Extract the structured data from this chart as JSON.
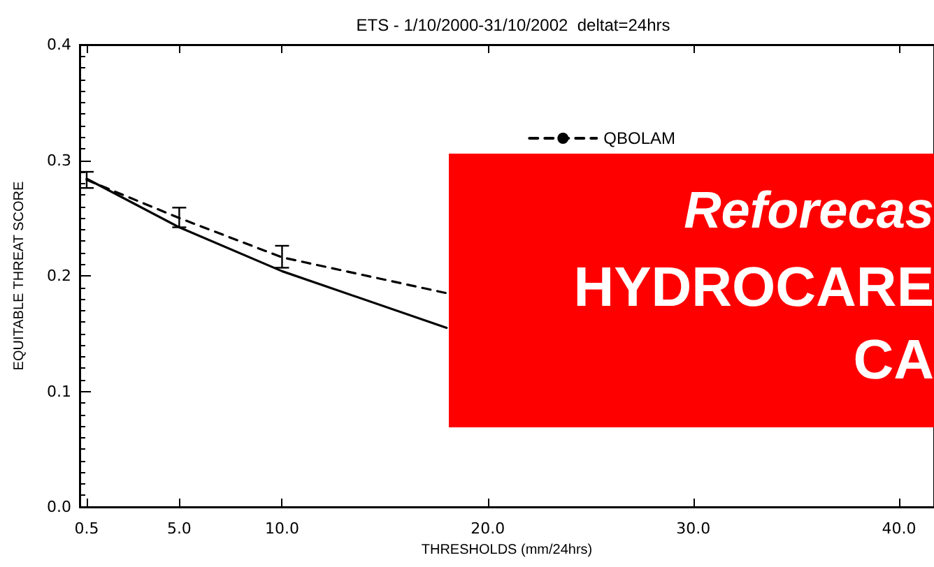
{
  "chart_data": {
    "type": "line",
    "title": "ETS - 1/10/2000-31/10/2002  deltat=24hrs",
    "xlabel": "THRESHOLDS (mm/24hrs)",
    "ylabel": "EQUITABLE THREAT SCORE",
    "x": [
      0.5,
      5,
      10,
      18
    ],
    "series": [
      {
        "color": "#000000",
        "line_style": "solid",
        "values": [
          0.284,
          0.242,
          0.204,
          0.155
        ]
      },
      {
        "name": "QBOLAM",
        "color": "#000000",
        "line_style": "dashed",
        "values": [
          0.283,
          0.25,
          0.216,
          0.185
        ],
        "errors": [
          [
            0.276,
            0.29
          ],
          [
            0.242,
            0.259
          ],
          [
            0.207,
            0.226
          ],
          null
        ]
      }
    ],
    "xlim": [
      0.16,
      41.7
    ],
    "xticks": [
      0.5,
      {
        "value": 5,
        "label": "5.0"
      },
      {
        "value": 10,
        "label": "10.0"
      },
      {
        "value": 20,
        "label": "20.0"
      },
      {
        "value": 30,
        "label": "30.0"
      },
      {
        "value": 40,
        "label": "40.0"
      }
    ],
    "ylim": [
      0,
      0.4
    ],
    "yticks": [
      {
        "value": 0,
        "label": "0.0"
      },
      0.1,
      0.2,
      0.3,
      0.4
    ],
    "grid": false,
    "legend": "top right",
    "marker": "none",
    "annotations": [
      "Reforecas",
      "HYDROCARE",
      "CA"
    ]
  }
}
